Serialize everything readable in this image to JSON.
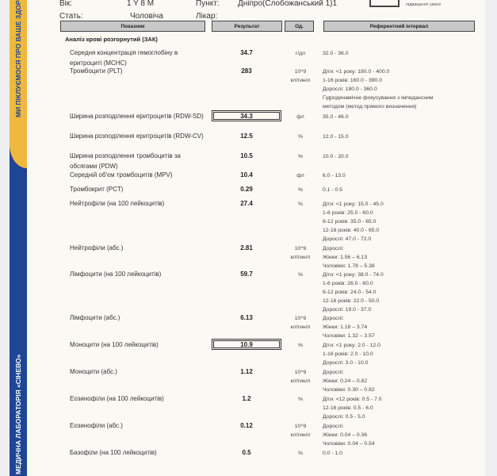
{
  "sidebar": {
    "slogan": "МИ ПІКЛУЄМОСЯ ПРО ВАШЕ ЗДОРОВ",
    "lab_name": "МЕДИЧНА ЛАБОРАТОРІЯ «СІНЕВО»",
    "colors": {
      "yellow": "#efb93d",
      "blue": "#1f4595"
    }
  },
  "patient": {
    "age_label": "Вік:",
    "age": "1 Y 8 M",
    "point_label": "Пункт:",
    "point": "Дніпро(Слобожанський 1)1",
    "sex_label": "Стать:",
    "sex": "Чоловіча",
    "doctor_label": "Лікар:",
    "legend_note": "підвищеної уваги"
  },
  "table": {
    "headers": [
      "Показник",
      "Результат",
      "Од.",
      "Референтний інтервал"
    ],
    "section": "Аналіз крові розгорнутий (ЗАК)",
    "rows": [
      {
        "name": "Середня концентрація гемоглобіну в еритроциті (MCHC)",
        "result": "34.7",
        "unit": "г/дл",
        "ref": [
          "32.0 - 36.0"
        ]
      },
      {
        "name": "Тромбоцити (PLT)",
        "result": "283",
        "unit": "10^9 клітин/л",
        "ref": [
          "Діти: <1 року: 180.0 - 400.0",
          "1-16 років: 160.0 - 390.0",
          "Дорослі: 180.0 - 360.0",
          "Гідродинамічне фокусування з імпедансним",
          "методом (метод прямого визначення)"
        ]
      },
      {
        "name": "Ширина розподілення еритроцитів (RDW-SD)",
        "result": "34.3",
        "unit": "фл",
        "ref": [
          "35.0 - 46.0"
        ],
        "flagged": true
      },
      {
        "name": "Ширина розподілення еритроцитів (RDW-CV)",
        "result": "12.5",
        "unit": "%",
        "ref": [
          "12.0 - 15.0"
        ]
      },
      {
        "name": "Ширина розподілення тромбоцитів за обсягами (PDW)",
        "result": "10.5",
        "unit": "%",
        "ref": [
          "10.0 - 20.0"
        ]
      },
      {
        "name": "Середній об'єм тромбоцитів (MPV)",
        "result": "10.4",
        "unit": "фл",
        "ref": [
          "6.0 - 13.0"
        ]
      },
      {
        "name": "Тромбокрит (PCT)",
        "result": "0.29",
        "unit": "%",
        "ref": [
          "0.1 - 0.5"
        ]
      },
      {
        "name": "Нейтрофіли (на 100 лейкоцитів)",
        "result": "27.4",
        "unit": "%",
        "ref": [
          "Діти: <1 року: 15.0 - 45.0",
          "1-6 років: 25.0 - 60.0",
          "6-12 років: 35.0 - 65.0",
          "12-16 років: 40.0 - 65.0",
          "Дорослі: 47.0 - 72.0"
        ]
      },
      {
        "name": "Нейтрофіли (абс.)",
        "result": "2.81",
        "unit": "10^9 клітин/л",
        "ref": [
          "Дорослі:",
          "Жінки: 1.56 – 6.13",
          "Чоловіки: 1.78 – 5.38"
        ]
      },
      {
        "name": "Лімфоцити (на 100 лейкоцитів)",
        "result": "59.7",
        "unit": "%",
        "ref": [
          "Діти: <1 року: 38.0 - 74.0",
          "1-6 років: 26.0 - 60.0",
          "6-12 років: 24.0 - 54.0",
          "12-16 років: 22.0 - 50.0",
          "Дорослі: 19.0 - 37.0"
        ]
      },
      {
        "name": "Лімфоцити (абс.)",
        "result": "6.13",
        "unit": "10^9 клітин/л",
        "ref": [
          "Дорослі:",
          "Жінки: 1.18 – 3.74",
          "Чоловіки: 1.32 – 3.57"
        ]
      },
      {
        "name": "Моноцити (на 100 лейкоцитів)",
        "result": "10.9",
        "unit": "%",
        "ref": [
          "Діти: <1 року: 2.0 - 12.0",
          "1-16 років: 2.0 - 10.0",
          "Дорослі: 3.0 - 10.0"
        ],
        "flagged": true
      },
      {
        "name": "Моноцити (абс.)",
        "result": "1.12",
        "unit": "10^9 клітин/л",
        "ref": [
          "Дорослі:",
          "Жінки: 0.24 – 0.82",
          "Чоловіки: 0.30 – 0.82"
        ]
      },
      {
        "name": "Еозинофіли (на 100 лейкоцитів)",
        "result": "1.2",
        "unit": "%",
        "ref": [
          "Діти: <12 років: 0.5 - 7.0",
          "12-16 років: 0.5 - 6.0",
          "Дорослі: 0.5 - 5.0"
        ]
      },
      {
        "name": "Еозинофіли (абс.)",
        "result": "0.12",
        "unit": "10^9 клітин/л",
        "ref": [
          "Дорослі:",
          "Жінки: 0.04 – 0.36",
          "Чоловіки: 0.04 – 0.54"
        ]
      },
      {
        "name": "Базофіли (на 100 лейкоцитів)",
        "result": "0.5",
        "unit": "%",
        "ref": [
          "0.0 - 1.0"
        ]
      }
    ]
  }
}
